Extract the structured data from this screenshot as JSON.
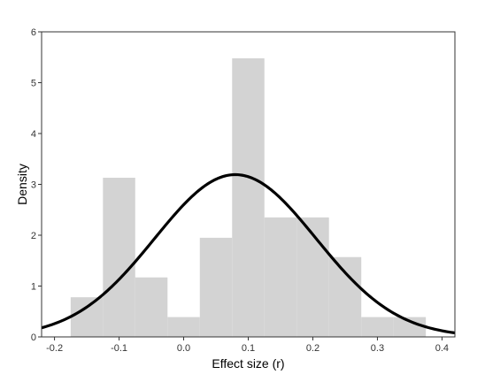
{
  "chart_data": {
    "type": "bar",
    "subtype": "histogram-with-density-curve",
    "xlabel": "Effect size (r)",
    "ylabel": "Density",
    "xlim": [
      -0.22,
      0.42
    ],
    "ylim": [
      0,
      6
    ],
    "x_ticks": [
      -0.2,
      -0.1,
      0.0,
      0.1,
      0.2,
      0.3,
      0.4
    ],
    "x_tick_labels": [
      "-0.2",
      "-0.1",
      "0.0",
      "0.1",
      "0.2",
      "0.3",
      "0.4"
    ],
    "y_ticks": [
      0,
      1,
      2,
      3,
      4,
      5,
      6
    ],
    "y_tick_labels": [
      "0",
      "1",
      "2",
      "3",
      "4",
      "5",
      "6"
    ],
    "bins": [
      {
        "x0": -0.175,
        "x1": -0.125,
        "density": 0.78
      },
      {
        "x0": -0.125,
        "x1": -0.075,
        "density": 3.13
      },
      {
        "x0": -0.075,
        "x1": -0.025,
        "density": 1.17
      },
      {
        "x0": -0.025,
        "x1": 0.025,
        "density": 0.39
      },
      {
        "x0": 0.025,
        "x1": 0.075,
        "density": 1.95
      },
      {
        "x0": 0.075,
        "x1": 0.125,
        "density": 5.48
      },
      {
        "x0": 0.125,
        "x1": 0.175,
        "density": 2.35
      },
      {
        "x0": 0.175,
        "x1": 0.225,
        "density": 2.35
      },
      {
        "x0": 0.225,
        "x1": 0.275,
        "density": 1.57
      },
      {
        "x0": 0.275,
        "x1": 0.325,
        "density": 0.39
      },
      {
        "x0": 0.325,
        "x1": 0.375,
        "density": 0.39
      }
    ],
    "curve": {
      "type": "normal",
      "mean": 0.08,
      "sd": 0.125
    },
    "bar_color": "#d3d3d3",
    "curve_color": "#000000",
    "grid": false,
    "legend": "none"
  }
}
